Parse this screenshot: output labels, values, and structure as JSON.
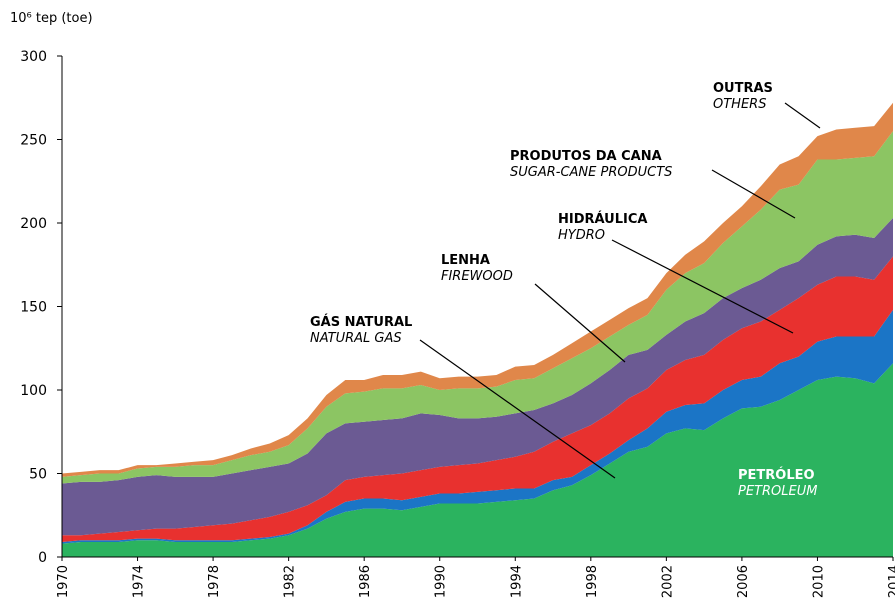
{
  "chart_data": {
    "type": "stacked_area",
    "ylabel": "10⁶ tep (toe)",
    "x": [
      1970,
      1971,
      1972,
      1973,
      1974,
      1975,
      1976,
      1977,
      1978,
      1979,
      1980,
      1981,
      1982,
      1983,
      1984,
      1985,
      1986,
      1987,
      1988,
      1989,
      1990,
      1991,
      1992,
      1993,
      1994,
      1995,
      1996,
      1997,
      1998,
      1999,
      2000,
      2001,
      2002,
      2003,
      2004,
      2005,
      2006,
      2007,
      2008,
      2009,
      2010,
      2011,
      2012,
      2013,
      2014
    ],
    "xlim": [
      1970,
      2014
    ],
    "xticks": [
      1970,
      1974,
      1978,
      1982,
      1986,
      1990,
      1994,
      1998,
      2002,
      2006,
      2010,
      2014
    ],
    "ylim": [
      0,
      300
    ],
    "yticks": [
      0,
      50,
      100,
      150,
      200,
      250,
      300
    ],
    "series": [
      {
        "name": "PETRÓLEO",
        "name_en": "PETROLEUM",
        "color": "#2bb35f",
        "values": [
          8,
          9,
          9,
          9,
          10,
          10,
          9,
          9,
          9,
          9,
          10,
          11,
          13,
          17,
          23,
          27,
          29,
          29,
          28,
          30,
          32,
          32,
          32,
          33,
          34,
          35,
          40,
          43,
          49,
          56,
          63,
          66,
          74,
          77,
          76,
          83,
          89,
          90,
          94,
          100,
          106,
          108,
          107,
          104,
          116
        ]
      },
      {
        "name": "GÁS NATURAL",
        "name_en": "NATURAL GAS",
        "color": "#1b75c6",
        "values": [
          1,
          1,
          1,
          1,
          1,
          1,
          1,
          1,
          1,
          1,
          1,
          1,
          1,
          2,
          4,
          6,
          6,
          6,
          6,
          6,
          6,
          6,
          7,
          7,
          7,
          6,
          6,
          5,
          6,
          6,
          7,
          11,
          13,
          14,
          16,
          17,
          17,
          18,
          22,
          20,
          23,
          24,
          25,
          28,
          32
        ]
      },
      {
        "name": "HIDRÁULICA",
        "name_en": "HYDRO",
        "color": "#e8312f",
        "values": [
          4,
          3,
          4,
          5,
          5,
          6,
          7,
          8,
          9,
          10,
          11,
          12,
          13,
          12,
          10,
          13,
          13,
          14,
          16,
          16,
          16,
          17,
          17,
          18,
          19,
          22,
          23,
          26,
          24,
          24,
          25,
          24,
          25,
          27,
          29,
          30,
          31,
          33,
          32,
          35,
          34,
          36,
          36,
          34,
          32
        ]
      },
      {
        "name": "LENHA",
        "name_en": "FIREWOOD",
        "color": "#6b5a93",
        "values": [
          31,
          32,
          31,
          31,
          32,
          32,
          31,
          30,
          29,
          30,
          30,
          30,
          29,
          31,
          37,
          34,
          33,
          33,
          33,
          34,
          31,
          28,
          27,
          26,
          26,
          25,
          23,
          23,
          25,
          26,
          26,
          23,
          21,
          23,
          25,
          25,
          24,
          25,
          25,
          22,
          24,
          24,
          25,
          25,
          23
        ]
      },
      {
        "name": "PRODUTOS DA CANA",
        "name_en": "SUGAR-CANE PRODUCTS",
        "color": "#8cc563",
        "values": [
          4,
          4,
          5,
          4,
          5,
          5,
          6,
          7,
          7,
          8,
          9,
          9,
          11,
          15,
          16,
          18,
          18,
          19,
          18,
          17,
          15,
          18,
          18,
          18,
          20,
          19,
          21,
          22,
          21,
          20,
          18,
          21,
          27,
          29,
          30,
          33,
          37,
          42,
          47,
          46,
          51,
          46,
          46,
          49,
          52
        ]
      },
      {
        "name": "OUTRAS",
        "name_en": "OTHERS",
        "color": "#e0874a",
        "values": [
          2,
          2,
          2,
          2,
          2,
          1,
          2,
          2,
          3,
          3,
          4,
          5,
          6,
          6,
          7,
          8,
          7,
          8,
          8,
          8,
          7,
          7,
          7,
          7,
          8,
          8,
          8,
          9,
          10,
          10,
          10,
          10,
          10,
          11,
          13,
          12,
          12,
          14,
          15,
          17,
          14,
          18,
          18,
          18,
          17
        ]
      }
    ]
  }
}
